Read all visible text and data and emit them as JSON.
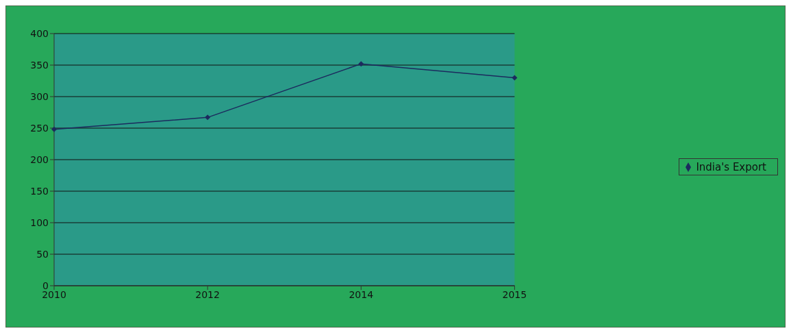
{
  "chart_data": {
    "type": "line",
    "categories": [
      "2010",
      "2012",
      "2014",
      "2015"
    ],
    "series": [
      {
        "name": "India's Export",
        "color": "#1c2a5e",
        "values": [
          248,
          267,
          352,
          330
        ]
      }
    ],
    "ylim": [
      0,
      400
    ],
    "yticks": [
      0,
      50,
      100,
      150,
      200,
      250,
      300,
      350,
      400
    ],
    "grid": "y",
    "legend": "right",
    "marker": "diamond",
    "line_style": "solid"
  }
}
